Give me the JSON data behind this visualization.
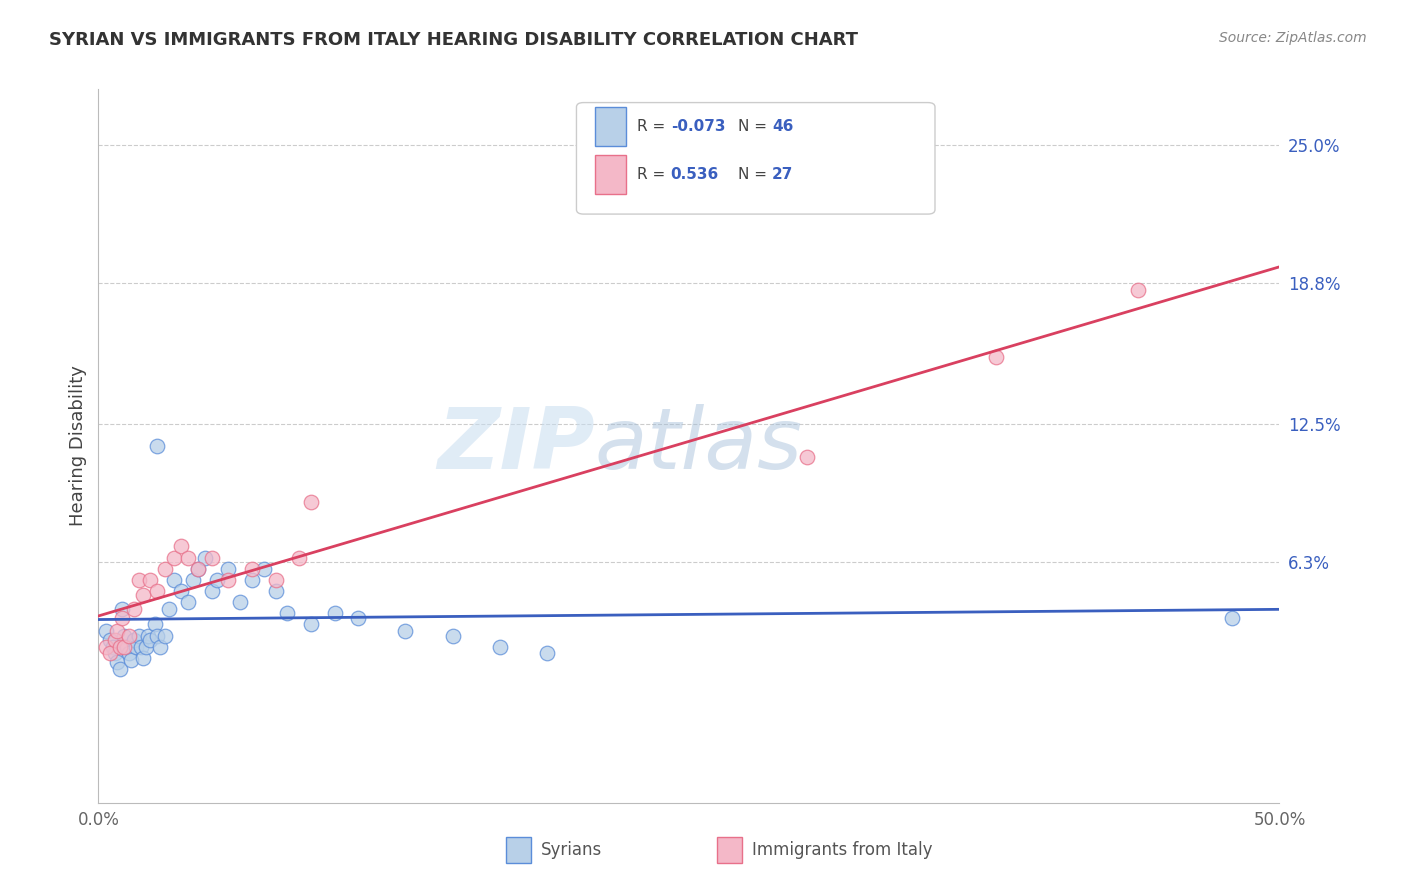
{
  "title": "SYRIAN VS IMMIGRANTS FROM ITALY HEARING DISABILITY CORRELATION CHART",
  "source": "Source: ZipAtlas.com",
  "ylabel": "Hearing Disability",
  "ytick_labels": [
    "25.0%",
    "18.8%",
    "12.5%",
    "6.3%"
  ],
  "ytick_values": [
    0.25,
    0.188,
    0.125,
    0.063
  ],
  "xmin": 0.0,
  "xmax": 0.5,
  "ymin": -0.045,
  "ymax": 0.275,
  "legend_label1": "Syrians",
  "legend_label2": "Immigrants from Italy",
  "R1": -0.073,
  "N1": 46,
  "R2": 0.536,
  "N2": 27,
  "blue_fill": "#b8d0e8",
  "pink_fill": "#f4b8c8",
  "blue_edge": "#5b8dd9",
  "pink_edge": "#e8708a",
  "blue_line": "#3a5fbf",
  "pink_line": "#d94060",
  "watermark_color": "#ccddf0",
  "syrians_x": [
    0.003,
    0.005,
    0.006,
    0.007,
    0.008,
    0.009,
    0.01,
    0.011,
    0.012,
    0.013,
    0.014,
    0.015,
    0.016,
    0.017,
    0.018,
    0.019,
    0.02,
    0.021,
    0.022,
    0.024,
    0.025,
    0.026,
    0.028,
    0.03,
    0.032,
    0.035,
    0.038,
    0.04,
    0.042,
    0.045,
    0.048,
    0.05,
    0.055,
    0.06,
    0.065,
    0.07,
    0.075,
    0.08,
    0.09,
    0.1,
    0.11,
    0.13,
    0.15,
    0.17,
    0.19,
    0.48
  ],
  "syrians_y": [
    0.032,
    0.028,
    0.025,
    0.022,
    0.018,
    0.015,
    0.042,
    0.03,
    0.025,
    0.022,
    0.019,
    0.028,
    0.025,
    0.03,
    0.025,
    0.02,
    0.025,
    0.03,
    0.028,
    0.035,
    0.03,
    0.025,
    0.03,
    0.042,
    0.055,
    0.05,
    0.045,
    0.055,
    0.06,
    0.065,
    0.05,
    0.055,
    0.06,
    0.045,
    0.055,
    0.06,
    0.05,
    0.04,
    0.035,
    0.04,
    0.038,
    0.032,
    0.03,
    0.025,
    0.022,
    0.038
  ],
  "syrians_y_extra": [
    0.115
  ],
  "syrians_x_extra": [
    0.025
  ],
  "italy_x": [
    0.003,
    0.005,
    0.007,
    0.008,
    0.009,
    0.01,
    0.011,
    0.013,
    0.015,
    0.017,
    0.019,
    0.022,
    0.025,
    0.028,
    0.032,
    0.035,
    0.038,
    0.042,
    0.048,
    0.055,
    0.065,
    0.075,
    0.085,
    0.09,
    0.3,
    0.38,
    0.44
  ],
  "italy_y": [
    0.025,
    0.022,
    0.028,
    0.032,
    0.025,
    0.038,
    0.025,
    0.03,
    0.042,
    0.055,
    0.048,
    0.055,
    0.05,
    0.06,
    0.065,
    0.07,
    0.065,
    0.06,
    0.065,
    0.055,
    0.06,
    0.055,
    0.065,
    0.09,
    0.11,
    0.155,
    0.185
  ]
}
